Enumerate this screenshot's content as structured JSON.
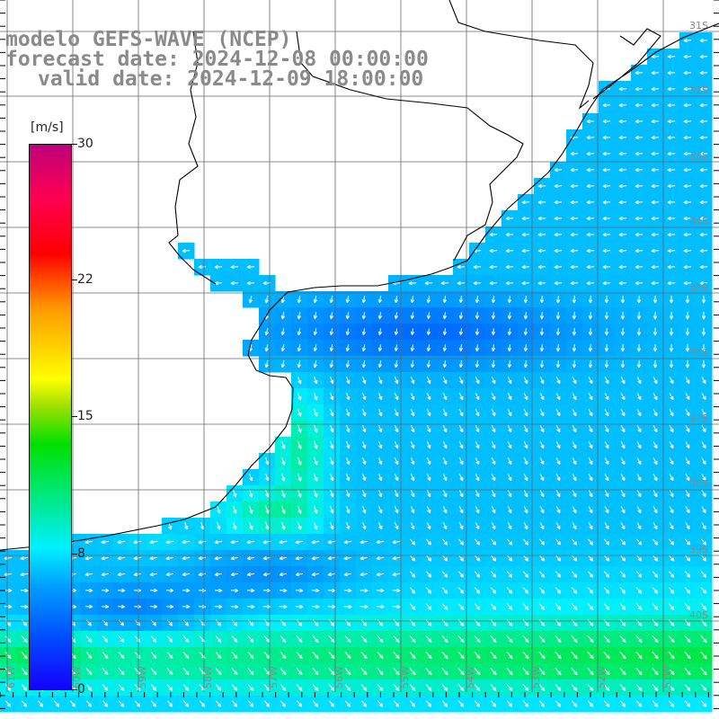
{
  "header": {
    "line1": "modelo GEFS-WAVE (NCEP)",
    "line2": "forecast date: 2024-12-08 00:00:00",
    "line3": "valid date: 2024-12-09 18:00:00"
  },
  "colorbar": {
    "unit": "[m/s]",
    "ticks": [
      {
        "label": "30",
        "value": 30
      },
      {
        "label": "22",
        "value": 22
      },
      {
        "label": "15",
        "value": 15
      },
      {
        "label": "8",
        "value": 8
      },
      {
        "label": "0",
        "value": 0
      }
    ],
    "range": [
      0,
      30
    ]
  },
  "map": {
    "lat_labels": [
      "31S",
      "32S",
      "33S",
      "34S",
      "35S",
      "36S",
      "37S",
      "38S",
      "39S",
      "40S"
    ],
    "lon_labels": [
      "61W",
      "60W",
      "59W",
      "58W",
      "57W",
      "56W",
      "55W",
      "54W",
      "53W",
      "52W",
      "51W"
    ],
    "colors": {
      "land": "#ffffff",
      "grid": "#666666",
      "coast": "#000000",
      "arrow": "#ffffff"
    }
  }
}
